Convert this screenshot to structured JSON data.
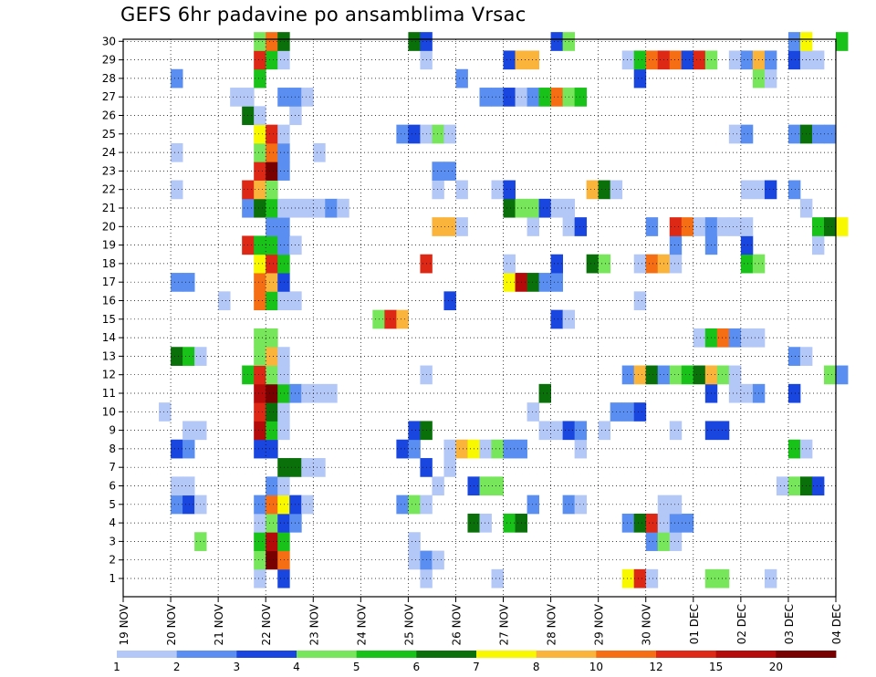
{
  "chart_data": {
    "type": "heatmap",
    "title": "GEFS 6hr padavine po ansamblima Vrsac",
    "xlabel": "",
    "ylabel": "",
    "x_tick_labels": [
      "19 NOV",
      "20 NOV",
      "21 NOV",
      "22 NOV",
      "23 NOV",
      "24 NOV",
      "25 NOV",
      "26 NOV",
      "27 NOV",
      "28 NOV",
      "29 NOV",
      "30 NOV",
      "01 DEC",
      "02 DEC",
      "03 DEC",
      "04 DEC"
    ],
    "y_tick_labels": [
      "1",
      "2",
      "3",
      "4",
      "5",
      "6",
      "7",
      "8",
      "9",
      "10",
      "11",
      "12",
      "13",
      "14",
      "15",
      "16",
      "17",
      "18",
      "19",
      "20",
      "21",
      "22",
      "23",
      "24",
      "25",
      "26",
      "27",
      "28",
      "29",
      "30"
    ],
    "ylim": [
      1,
      30
    ],
    "x_steps_per_day": 4,
    "grid": "dotted",
    "colorbar": {
      "levels": [
        "1",
        "2",
        "3",
        "4",
        "5",
        "6",
        "7",
        "8",
        "10",
        "12",
        "15",
        "20"
      ],
      "colors": [
        "#b4c8f8",
        "#5a8ef0",
        "#1a46e0",
        "#78e65a",
        "#18c218",
        "#0a700a",
        "#f8f800",
        "#fab43c",
        "#f56e14",
        "#dc2814",
        "#b40a0a",
        "#780000"
      ]
    },
    "legend_position": "bottom",
    "cells": [
      [
        1,
        11,
        0
      ],
      [
        1,
        13,
        2
      ],
      [
        1,
        25,
        0
      ],
      [
        1,
        31,
        0
      ],
      [
        1,
        42,
        6
      ],
      [
        1,
        43,
        9
      ],
      [
        1,
        44,
        0
      ],
      [
        1,
        49,
        3
      ],
      [
        1,
        50,
        3
      ],
      [
        1,
        54,
        0
      ],
      [
        2,
        11,
        3
      ],
      [
        2,
        12,
        11
      ],
      [
        2,
        13,
        8
      ],
      [
        2,
        24,
        0
      ],
      [
        2,
        25,
        1
      ],
      [
        2,
        26,
        0
      ],
      [
        3,
        6,
        3
      ],
      [
        3,
        11,
        4
      ],
      [
        3,
        12,
        10
      ],
      [
        3,
        13,
        4
      ],
      [
        3,
        24,
        0
      ],
      [
        3,
        44,
        1
      ],
      [
        3,
        45,
        3
      ],
      [
        3,
        46,
        0
      ],
      [
        4,
        11,
        0
      ],
      [
        4,
        12,
        3
      ],
      [
        4,
        13,
        2
      ],
      [
        4,
        14,
        1
      ],
      [
        4,
        29,
        5
      ],
      [
        4,
        30,
        0
      ],
      [
        4,
        32,
        4
      ],
      [
        4,
        33,
        5
      ],
      [
        4,
        42,
        1
      ],
      [
        4,
        43,
        5
      ],
      [
        4,
        44,
        9
      ],
      [
        4,
        45,
        0
      ],
      [
        4,
        46,
        1
      ],
      [
        4,
        47,
        1
      ],
      [
        5,
        4,
        1
      ],
      [
        5,
        5,
        2
      ],
      [
        5,
        6,
        0
      ],
      [
        5,
        11,
        1
      ],
      [
        5,
        12,
        8
      ],
      [
        5,
        13,
        6
      ],
      [
        5,
        14,
        2
      ],
      [
        5,
        15,
        0
      ],
      [
        5,
        23,
        1
      ],
      [
        5,
        24,
        3
      ],
      [
        5,
        25,
        0
      ],
      [
        5,
        34,
        1
      ],
      [
        5,
        37,
        1
      ],
      [
        5,
        38,
        0
      ],
      [
        5,
        45,
        0
      ],
      [
        5,
        46,
        0
      ],
      [
        6,
        4,
        0
      ],
      [
        6,
        5,
        0
      ],
      [
        6,
        12,
        1
      ],
      [
        6,
        13,
        0
      ],
      [
        6,
        26,
        0
      ],
      [
        6,
        29,
        2
      ],
      [
        6,
        30,
        3
      ],
      [
        6,
        31,
        3
      ],
      [
        6,
        55,
        0
      ],
      [
        6,
        56,
        3
      ],
      [
        6,
        57,
        5
      ],
      [
        6,
        58,
        2
      ],
      [
        7,
        13,
        5
      ],
      [
        7,
        14,
        5
      ],
      [
        7,
        15,
        0
      ],
      [
        7,
        16,
        0
      ],
      [
        7,
        25,
        2
      ],
      [
        7,
        27,
        0
      ],
      [
        8,
        4,
        2
      ],
      [
        8,
        5,
        1
      ],
      [
        8,
        11,
        2
      ],
      [
        8,
        12,
        2
      ],
      [
        8,
        23,
        2
      ],
      [
        8,
        24,
        1
      ],
      [
        8,
        27,
        0
      ],
      [
        8,
        28,
        7
      ],
      [
        8,
        29,
        6
      ],
      [
        8,
        30,
        0
      ],
      [
        8,
        31,
        3
      ],
      [
        8,
        32,
        1
      ],
      [
        8,
        33,
        1
      ],
      [
        8,
        38,
        0
      ],
      [
        8,
        56,
        4
      ],
      [
        8,
        57,
        0
      ],
      [
        9,
        5,
        0
      ],
      [
        9,
        6,
        0
      ],
      [
        9,
        11,
        10
      ],
      [
        9,
        12,
        4
      ],
      [
        9,
        13,
        0
      ],
      [
        9,
        24,
        2
      ],
      [
        9,
        25,
        5
      ],
      [
        9,
        35,
        0
      ],
      [
        9,
        36,
        0
      ],
      [
        9,
        37,
        2
      ],
      [
        9,
        38,
        1
      ],
      [
        9,
        40,
        0
      ],
      [
        9,
        46,
        0
      ],
      [
        9,
        49,
        2
      ],
      [
        9,
        50,
        2
      ],
      [
        10,
        3,
        0
      ],
      [
        10,
        11,
        9
      ],
      [
        10,
        12,
        5
      ],
      [
        10,
        13,
        0
      ],
      [
        10,
        34,
        0
      ],
      [
        10,
        41,
        1
      ],
      [
        10,
        42,
        1
      ],
      [
        10,
        43,
        2
      ],
      [
        11,
        11,
        10
      ],
      [
        11,
        12,
        11
      ],
      [
        11,
        13,
        4
      ],
      [
        11,
        14,
        1
      ],
      [
        11,
        15,
        0
      ],
      [
        11,
        16,
        0
      ],
      [
        11,
        17,
        0
      ],
      [
        11,
        35,
        5
      ],
      [
        11,
        49,
        2
      ],
      [
        11,
        51,
        0
      ],
      [
        11,
        52,
        0
      ],
      [
        11,
        53,
        1
      ],
      [
        11,
        56,
        2
      ],
      [
        12,
        10,
        4
      ],
      [
        12,
        11,
        9
      ],
      [
        12,
        12,
        3
      ],
      [
        12,
        13,
        0
      ],
      [
        12,
        25,
        0
      ],
      [
        12,
        42,
        1
      ],
      [
        12,
        43,
        7
      ],
      [
        12,
        44,
        5
      ],
      [
        12,
        45,
        1
      ],
      [
        12,
        46,
        3
      ],
      [
        12,
        47,
        4
      ],
      [
        12,
        48,
        5
      ],
      [
        12,
        49,
        7
      ],
      [
        12,
        50,
        3
      ],
      [
        12,
        51,
        0
      ],
      [
        12,
        59,
        3
      ],
      [
        12,
        60,
        1
      ],
      [
        13,
        4,
        5
      ],
      [
        13,
        5,
        4
      ],
      [
        13,
        6,
        0
      ],
      [
        13,
        11,
        3
      ],
      [
        13,
        12,
        7
      ],
      [
        13,
        13,
        0
      ],
      [
        13,
        56,
        1
      ],
      [
        13,
        57,
        0
      ],
      [
        14,
        11,
        3
      ],
      [
        14,
        12,
        3
      ],
      [
        14,
        48,
        0
      ],
      [
        14,
        49,
        4
      ],
      [
        14,
        50,
        8
      ],
      [
        14,
        51,
        1
      ],
      [
        14,
        52,
        0
      ],
      [
        14,
        53,
        0
      ],
      [
        15,
        21,
        3
      ],
      [
        15,
        22,
        9
      ],
      [
        15,
        23,
        7
      ],
      [
        15,
        36,
        2
      ],
      [
        15,
        37,
        0
      ],
      [
        16,
        8,
        0
      ],
      [
        16,
        11,
        8
      ],
      [
        16,
        12,
        4
      ],
      [
        16,
        13,
        0
      ],
      [
        16,
        14,
        0
      ],
      [
        16,
        27,
        2
      ],
      [
        16,
        43,
        0
      ],
      [
        17,
        4,
        1
      ],
      [
        17,
        5,
        1
      ],
      [
        17,
        11,
        8
      ],
      [
        17,
        12,
        7
      ],
      [
        17,
        13,
        2
      ],
      [
        17,
        32,
        6
      ],
      [
        17,
        33,
        10
      ],
      [
        17,
        34,
        5
      ],
      [
        17,
        35,
        1
      ],
      [
        17,
        36,
        1
      ],
      [
        18,
        11,
        6
      ],
      [
        18,
        12,
        9
      ],
      [
        18,
        13,
        4
      ],
      [
        18,
        25,
        9
      ],
      [
        18,
        32,
        0
      ],
      [
        18,
        36,
        2
      ],
      [
        18,
        39,
        5
      ],
      [
        18,
        40,
        3
      ],
      [
        18,
        43,
        0
      ],
      [
        18,
        44,
        8
      ],
      [
        18,
        45,
        7
      ],
      [
        18,
        46,
        0
      ],
      [
        18,
        52,
        4
      ],
      [
        18,
        53,
        3
      ],
      [
        19,
        10,
        9
      ],
      [
        19,
        11,
        4
      ],
      [
        19,
        12,
        4
      ],
      [
        19,
        13,
        1
      ],
      [
        19,
        14,
        0
      ],
      [
        19,
        46,
        1
      ],
      [
        19,
        49,
        1
      ],
      [
        19,
        52,
        2
      ],
      [
        19,
        58,
        0
      ],
      [
        20,
        12,
        1
      ],
      [
        20,
        13,
        1
      ],
      [
        20,
        26,
        7
      ],
      [
        20,
        27,
        7
      ],
      [
        20,
        28,
        0
      ],
      [
        20,
        34,
        0
      ],
      [
        20,
        37,
        0
      ],
      [
        20,
        38,
        2
      ],
      [
        20,
        44,
        1
      ],
      [
        20,
        46,
        9
      ],
      [
        20,
        47,
        8
      ],
      [
        20,
        48,
        0
      ],
      [
        20,
        49,
        1
      ],
      [
        20,
        50,
        0
      ],
      [
        20,
        51,
        0
      ],
      [
        20,
        52,
        0
      ],
      [
        20,
        58,
        4
      ],
      [
        20,
        59,
        5
      ],
      [
        20,
        60,
        6
      ],
      [
        21,
        10,
        1
      ],
      [
        21,
        11,
        5
      ],
      [
        21,
        12,
        4
      ],
      [
        21,
        13,
        0
      ],
      [
        21,
        14,
        0
      ],
      [
        21,
        15,
        0
      ],
      [
        21,
        16,
        0
      ],
      [
        21,
        17,
        1
      ],
      [
        21,
        18,
        0
      ],
      [
        21,
        32,
        5
      ],
      [
        21,
        33,
        3
      ],
      [
        21,
        34,
        3
      ],
      [
        21,
        35,
        2
      ],
      [
        21,
        36,
        0
      ],
      [
        21,
        37,
        0
      ],
      [
        21,
        57,
        0
      ],
      [
        22,
        4,
        0
      ],
      [
        22,
        10,
        9
      ],
      [
        22,
        11,
        7
      ],
      [
        22,
        12,
        3
      ],
      [
        22,
        26,
        0
      ],
      [
        22,
        28,
        0
      ],
      [
        22,
        31,
        0
      ],
      [
        22,
        32,
        2
      ],
      [
        22,
        39,
        7
      ],
      [
        22,
        40,
        5
      ],
      [
        22,
        41,
        0
      ],
      [
        22,
        52,
        0
      ],
      [
        22,
        53,
        0
      ],
      [
        22,
        54,
        2
      ],
      [
        22,
        56,
        1
      ],
      [
        23,
        11,
        9
      ],
      [
        23,
        12,
        11
      ],
      [
        23,
        13,
        1
      ],
      [
        23,
        26,
        1
      ],
      [
        23,
        27,
        1
      ],
      [
        24,
        4,
        0
      ],
      [
        24,
        11,
        3
      ],
      [
        24,
        12,
        8
      ],
      [
        24,
        13,
        1
      ],
      [
        24,
        16,
        0
      ],
      [
        25,
        11,
        6
      ],
      [
        25,
        12,
        9
      ],
      [
        25,
        13,
        0
      ],
      [
        25,
        23,
        1
      ],
      [
        25,
        24,
        2
      ],
      [
        25,
        25,
        0
      ],
      [
        25,
        26,
        3
      ],
      [
        25,
        27,
        0
      ],
      [
        25,
        51,
        0
      ],
      [
        25,
        52,
        1
      ],
      [
        25,
        56,
        1
      ],
      [
        25,
        57,
        5
      ],
      [
        25,
        58,
        1
      ],
      [
        25,
        59,
        1
      ],
      [
        26,
        10,
        5
      ],
      [
        26,
        11,
        0
      ],
      [
        26,
        14,
        0
      ],
      [
        27,
        9,
        0
      ],
      [
        27,
        10,
        0
      ],
      [
        27,
        13,
        1
      ],
      [
        27,
        14,
        1
      ],
      [
        27,
        15,
        0
      ],
      [
        27,
        30,
        1
      ],
      [
        27,
        31,
        1
      ],
      [
        27,
        32,
        2
      ],
      [
        27,
        33,
        0
      ],
      [
        27,
        34,
        1
      ],
      [
        27,
        35,
        4
      ],
      [
        27,
        36,
        8
      ],
      [
        27,
        37,
        3
      ],
      [
        27,
        38,
        4
      ],
      [
        28,
        4,
        1
      ],
      [
        28,
        11,
        4
      ],
      [
        28,
        28,
        1
      ],
      [
        28,
        43,
        2
      ],
      [
        28,
        53,
        3
      ],
      [
        28,
        54,
        0
      ],
      [
        29,
        11,
        9
      ],
      [
        29,
        12,
        4
      ],
      [
        29,
        13,
        0
      ],
      [
        29,
        25,
        0
      ],
      [
        29,
        32,
        2
      ],
      [
        29,
        33,
        7
      ],
      [
        29,
        34,
        7
      ],
      [
        29,
        42,
        0
      ],
      [
        29,
        43,
        4
      ],
      [
        29,
        44,
        8
      ],
      [
        29,
        45,
        9
      ],
      [
        29,
        46,
        8
      ],
      [
        29,
        47,
        2
      ],
      [
        29,
        48,
        9
      ],
      [
        29,
        49,
        3
      ],
      [
        29,
        51,
        0
      ],
      [
        29,
        52,
        1
      ],
      [
        29,
        53,
        7
      ],
      [
        29,
        54,
        1
      ],
      [
        29,
        56,
        2
      ],
      [
        29,
        57,
        0
      ],
      [
        29,
        58,
        0
      ],
      [
        30,
        11,
        3
      ],
      [
        30,
        12,
        8
      ],
      [
        30,
        13,
        5
      ],
      [
        30,
        24,
        5
      ],
      [
        30,
        25,
        2
      ],
      [
        30,
        36,
        2
      ],
      [
        30,
        37,
        3
      ],
      [
        30,
        56,
        1
      ],
      [
        30,
        57,
        6
      ],
      [
        30,
        60,
        4
      ]
    ]
  }
}
